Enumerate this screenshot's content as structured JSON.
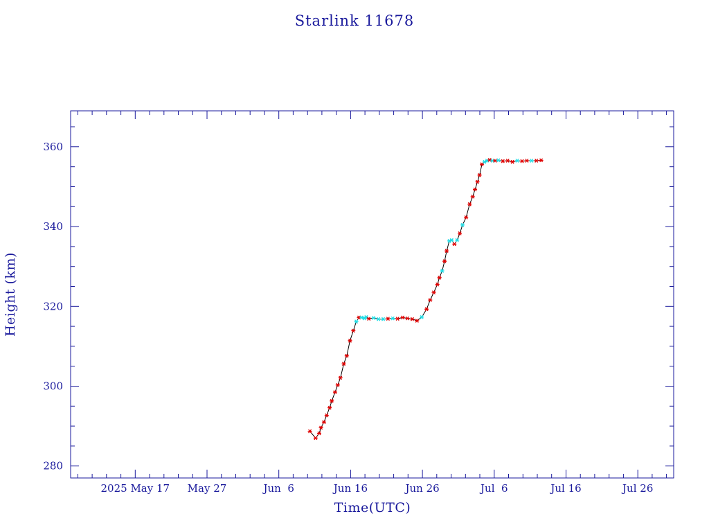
{
  "colors": {
    "axis": "#1a1a9c",
    "line": "#000000",
    "marker_primary": "#e00000",
    "marker_secondary": "#22dde6",
    "background": "#ffffff"
  },
  "chart_data": {
    "type": "line",
    "title": "Starlink 11678",
    "xlabel": "Time(UTC)",
    "ylabel": "Height (km)",
    "xlim": [
      "2025-05-08",
      "2025-07-31"
    ],
    "ylim": [
      277,
      369
    ],
    "grid": false,
    "x_tick_labels": [
      "2025 May 17",
      "May 27",
      "Jun  6",
      "Jun 16",
      "Jun 26",
      "Jul  6",
      "Jul 16",
      "Jul 26"
    ],
    "x_tick_dates": [
      "2025-05-17",
      "2025-05-27",
      "2025-06-06",
      "2025-06-16",
      "2025-06-26",
      "2025-07-06",
      "2025-07-16",
      "2025-07-26"
    ],
    "y_tick_labels": [
      "280",
      "300",
      "320",
      "340",
      "360"
    ],
    "y_tick_values": [
      280,
      300,
      320,
      340,
      360
    ],
    "series": [
      {
        "x": [
          "2025-06-10 08:00",
          "2025-06-11 03:00",
          "2025-06-11 15:00",
          "2025-06-11 21:00",
          "2025-06-12 07:00",
          "2025-06-12 16:00",
          "2025-06-13 02:00",
          "2025-06-13 09:00",
          "2025-06-13 20:00",
          "2025-06-14 05:00",
          "2025-06-14 14:00",
          "2025-06-15 01:00",
          "2025-06-15 11:00",
          "2025-06-15 22:00",
          "2025-06-16 09:00",
          "2025-06-16 19:00",
          "2025-06-17 04:00",
          "2025-06-17 13:00",
          "2025-06-17 22:00",
          "2025-06-18 04:00",
          "2025-06-18 13:00",
          "2025-06-19 05:00",
          "2025-06-19 21:00",
          "2025-06-20 13:00",
          "2025-06-21 05:00",
          "2025-06-21 21:00",
          "2025-06-22 13:00",
          "2025-06-23 06:00",
          "2025-06-23 22:00",
          "2025-06-24 14:00",
          "2025-06-25 06:00",
          "2025-06-25 22:00",
          "2025-06-26 14:00",
          "2025-06-27 02:00",
          "2025-06-27 14:00",
          "2025-06-28 02:00",
          "2025-06-28 09:00",
          "2025-06-28 18:00",
          "2025-06-29 02:00",
          "2025-06-29 09:00",
          "2025-06-29 18:00",
          "2025-06-30 02:00",
          "2025-06-30 11:00",
          "2025-06-30 20:00",
          "2025-07-01 05:00",
          "2025-07-01 14:00",
          "2025-07-02 02:00",
          "2025-07-02 14:00",
          "2025-07-03 00:00",
          "2025-07-03 08:00",
          "2025-07-03 16:00",
          "2025-07-03 23:00",
          "2025-07-04 07:00",
          "2025-07-04 16:00",
          "2025-07-05 00:00",
          "2025-07-05 09:00",
          "2025-07-05 18:00",
          "2025-07-06 03:00",
          "2025-07-06 14:00",
          "2025-07-07 05:00",
          "2025-07-07 21:00",
          "2025-07-08 13:00",
          "2025-07-09 05:00",
          "2025-07-09 21:00",
          "2025-07-10 13:00",
          "2025-07-11 05:00",
          "2025-07-11 21:00",
          "2025-07-12 13:00"
        ],
        "y": [
          288.7,
          287.0,
          288.2,
          289.6,
          291.0,
          292.7,
          294.6,
          296.3,
          298.5,
          300.3,
          302.1,
          305.6,
          307.6,
          311.4,
          313.9,
          316.2,
          317.2,
          317.2,
          317.0,
          317.3,
          316.9,
          317.1,
          316.8,
          316.8,
          316.9,
          317.0,
          316.9,
          317.2,
          317.0,
          316.8,
          316.4,
          317.3,
          319.3,
          321.6,
          323.5,
          325.5,
          327.2,
          328.9,
          331.3,
          333.9,
          336.4,
          336.6,
          335.6,
          336.6,
          338.3,
          340.4,
          342.3,
          345.6,
          347.5,
          349.3,
          351.2,
          352.9,
          355.6,
          356.2,
          356.5,
          356.7,
          356.5,
          356.5,
          356.6,
          356.4,
          356.5,
          356.2,
          356.5,
          356.4,
          356.5,
          356.5,
          356.5,
          356.6
        ],
        "marker_color_keys": [
          "p",
          "p",
          "p",
          "p",
          "p",
          "p",
          "p",
          "p",
          "p",
          "p",
          "p",
          "p",
          "p",
          "p",
          "p",
          "s",
          "p",
          "s",
          "s",
          "s",
          "p",
          "s",
          "s",
          "s",
          "p",
          "s",
          "p",
          "p",
          "p",
          "p",
          "p",
          "s",
          "p",
          "p",
          "p",
          "p",
          "p",
          "s",
          "p",
          "p",
          "s",
          "s",
          "p",
          "s",
          "p",
          "s",
          "p",
          "p",
          "p",
          "p",
          "p",
          "p",
          "p",
          "s",
          "s",
          "p",
          "s",
          "p",
          "s",
          "p",
          "p",
          "p",
          "s",
          "p",
          "p",
          "s",
          "p",
          "p"
        ]
      }
    ]
  }
}
